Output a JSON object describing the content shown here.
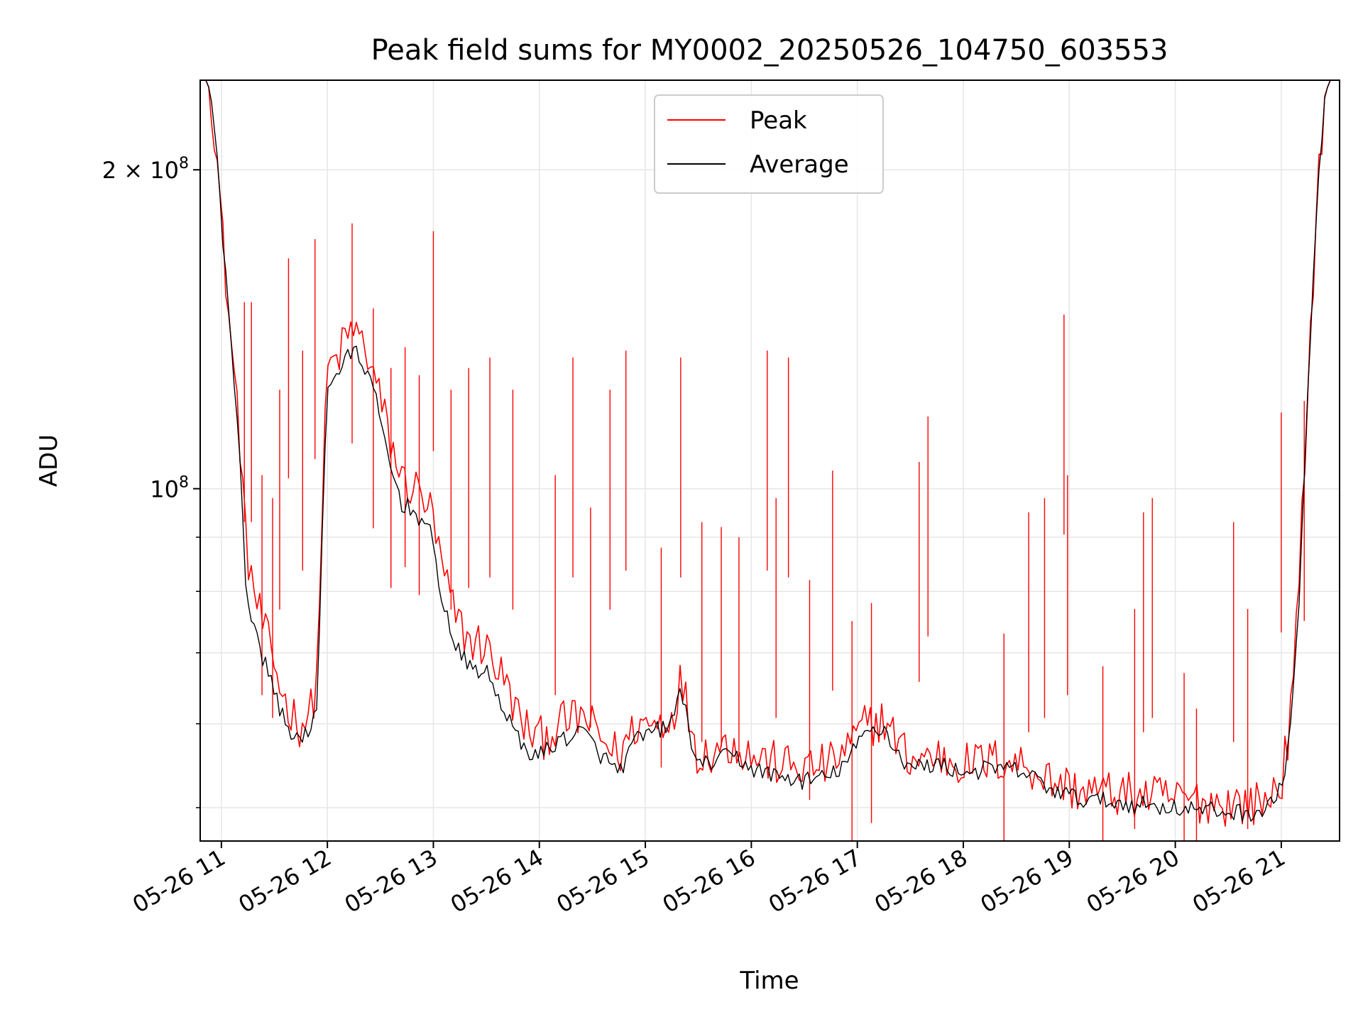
{
  "chart_data": {
    "type": "line",
    "title": "Peak field sums for MY0002_20250526_104750_603553",
    "xlabel": "Time",
    "ylabel": "ADU",
    "yscale": "log",
    "xlim": [
      "2025-05-26T10:48:00",
      "2025-05-26T21:33:00"
    ],
    "ylim": [
      46500000,
      243000000
    ],
    "grid": true,
    "legend_position": "top-center",
    "x_ticks": [
      "05-26 11",
      "05-26 12",
      "05-26 13",
      "05-26 14",
      "05-26 15",
      "05-26 16",
      "05-26 17",
      "05-26 18",
      "05-26 19",
      "05-26 20",
      "05-26 21"
    ],
    "y_ticks": [
      {
        "value": 100000000,
        "base": "10",
        "exp": "8",
        "prefix": ""
      },
      {
        "value": 200000000,
        "base": "10",
        "exp": "8",
        "prefix": "2 × "
      }
    ],
    "series": [
      {
        "name": "Peak",
        "color": "#ff0000",
        "base": [
          [
            "2025-05-26T10:48:00",
            243000000
          ],
          [
            "2025-05-26T10:52:00",
            243000000
          ],
          [
            "2025-05-26T10:55:00",
            230000000
          ],
          [
            "2025-05-26T10:58:00",
            200000000
          ],
          [
            "2025-05-26T11:01:00",
            170000000
          ],
          [
            "2025-05-26T11:05:00",
            140000000
          ],
          [
            "2025-05-26T11:10:00",
            115000000
          ],
          [
            "2025-05-26T11:14:00",
            88000000
          ],
          [
            "2025-05-26T11:20:00",
            78000000
          ],
          [
            "2025-05-26T11:28:00",
            70000000
          ],
          [
            "2025-05-26T11:36:00",
            63000000
          ],
          [
            "2025-05-26T11:44:00",
            60000000
          ],
          [
            "2025-05-26T11:50:00",
            61000000
          ],
          [
            "2025-05-26T11:54:00",
            66000000
          ],
          [
            "2025-05-26T11:57:00",
            95000000
          ],
          [
            "2025-05-26T12:00:00",
            130000000
          ],
          [
            "2025-05-26T12:05:00",
            132000000
          ],
          [
            "2025-05-26T12:10:00",
            138000000
          ],
          [
            "2025-05-26T12:15:00",
            142000000
          ],
          [
            "2025-05-26T12:22:00",
            135000000
          ],
          [
            "2025-05-26T12:28:00",
            125000000
          ],
          [
            "2025-05-26T12:35:00",
            112000000
          ],
          [
            "2025-05-26T12:42:00",
            102000000
          ],
          [
            "2025-05-26T12:50:00",
            100000000
          ],
          [
            "2025-05-26T12:58:00",
            96000000
          ],
          [
            "2025-05-26T13:05:00",
            84000000
          ],
          [
            "2025-05-26T13:12:00",
            76000000
          ],
          [
            "2025-05-26T13:20:00",
            72000000
          ],
          [
            "2025-05-26T13:30:00",
            71000000
          ],
          [
            "2025-05-26T13:40:00",
            66000000
          ],
          [
            "2025-05-26T13:50:00",
            60000000
          ],
          [
            "2025-05-26T14:00:00",
            58000000
          ],
          [
            "2025-05-26T14:12:00",
            60000000
          ],
          [
            "2025-05-26T14:25:00",
            61000000
          ],
          [
            "2025-05-26T14:35:00",
            58000000
          ],
          [
            "2025-05-26T14:45:00",
            56000000
          ],
          [
            "2025-05-26T14:55:00",
            60000000
          ],
          [
            "2025-05-26T15:05:00",
            60000000
          ],
          [
            "2025-05-26T15:15:00",
            61000000
          ],
          [
            "2025-05-26T15:20:00",
            66000000
          ],
          [
            "2025-05-26T15:25:00",
            61000000
          ],
          [
            "2025-05-26T15:30:00",
            56000000
          ],
          [
            "2025-05-26T15:40:00",
            57000000
          ],
          [
            "2025-05-26T15:50:00",
            57500000
          ],
          [
            "2025-05-26T16:00:00",
            56000000
          ],
          [
            "2025-05-26T16:15:00",
            55000000
          ],
          [
            "2025-05-26T16:30:00",
            54500000
          ],
          [
            "2025-05-26T16:45:00",
            55000000
          ],
          [
            "2025-05-26T16:55:00",
            57000000
          ],
          [
            "2025-05-26T17:05:00",
            60000000
          ],
          [
            "2025-05-26T17:15:00",
            60500000
          ],
          [
            "2025-05-26T17:22:00",
            58000000
          ],
          [
            "2025-05-26T17:30:00",
            55500000
          ],
          [
            "2025-05-26T17:45:00",
            56000000
          ],
          [
            "2025-05-26T18:00:00",
            55000000
          ],
          [
            "2025-05-26T18:20:00",
            55500000
          ],
          [
            "2025-05-26T18:35:00",
            55000000
          ],
          [
            "2025-05-26T18:50:00",
            53000000
          ],
          [
            "2025-05-26T19:05:00",
            52000000
          ],
          [
            "2025-05-26T19:30:00",
            51500000
          ],
          [
            "2025-05-26T20:00:00",
            51000000
          ],
          [
            "2025-05-26T20:30:00",
            50500000
          ],
          [
            "2025-05-26T20:50:00",
            50500000
          ],
          [
            "2025-05-26T21:00:00",
            53000000
          ],
          [
            "2025-05-26T21:05:00",
            60000000
          ],
          [
            "2025-05-26T21:10:00",
            80000000
          ],
          [
            "2025-05-26T21:15:00",
            125000000
          ],
          [
            "2025-05-26T21:20:00",
            185000000
          ],
          [
            "2025-05-26T21:24:00",
            230000000
          ],
          [
            "2025-05-26T21:27:00",
            243000000
          ],
          [
            "2025-05-26T21:33:00",
            243000000
          ]
        ],
        "spikes": [
          [
            "2025-05-26T11:13:00",
            150000000
          ],
          [
            "2025-05-26T11:17:00",
            150000000
          ],
          [
            "2025-05-26T11:23:00",
            103000000
          ],
          [
            "2025-05-26T11:29:00",
            98000000
          ],
          [
            "2025-05-26T11:33:00",
            124000000
          ],
          [
            "2025-05-26T11:38:00",
            165000000
          ],
          [
            "2025-05-26T11:46:00",
            135000000
          ],
          [
            "2025-05-26T11:53:00",
            172000000
          ],
          [
            "2025-05-26T12:14:00",
            178000000
          ],
          [
            "2025-05-26T12:26:00",
            148000000
          ],
          [
            "2025-05-26T12:36:00",
            130000000
          ],
          [
            "2025-05-26T12:44:00",
            136000000
          ],
          [
            "2025-05-26T12:52:00",
            128000000
          ],
          [
            "2025-05-26T13:00:00",
            175000000
          ],
          [
            "2025-05-26T13:10:00",
            124000000
          ],
          [
            "2025-05-26T13:20:00",
            130000000
          ],
          [
            "2025-05-26T13:32:00",
            133000000
          ],
          [
            "2025-05-26T13:45:00",
            124000000
          ],
          [
            "2025-05-26T14:09:00",
            103000000
          ],
          [
            "2025-05-26T14:19:00",
            133000000
          ],
          [
            "2025-05-26T14:29:00",
            96000000
          ],
          [
            "2025-05-26T14:40:00",
            124000000
          ],
          [
            "2025-05-26T14:49:00",
            135000000
          ],
          [
            "2025-05-26T15:09:00",
            88000000
          ],
          [
            "2025-05-26T15:20:00",
            133000000
          ],
          [
            "2025-05-26T15:32:00",
            93000000
          ],
          [
            "2025-05-26T15:43:00",
            92000000
          ],
          [
            "2025-05-26T15:53:00",
            90000000
          ],
          [
            "2025-05-26T16:09:00",
            135000000
          ],
          [
            "2025-05-26T16:14:00",
            98000000
          ],
          [
            "2025-05-26T16:21:00",
            133000000
          ],
          [
            "2025-05-26T16:33:00",
            82000000
          ],
          [
            "2025-05-26T16:46:00",
            104000000
          ],
          [
            "2025-05-26T16:57:00",
            75000000
          ],
          [
            "2025-05-26T17:08:00",
            78000000
          ],
          [
            "2025-05-26T17:35:00",
            106000000
          ],
          [
            "2025-05-26T17:40:00",
            117000000
          ],
          [
            "2025-05-26T18:23:00",
            73000000
          ],
          [
            "2025-05-26T18:37:00",
            95000000
          ],
          [
            "2025-05-26T18:46:00",
            98000000
          ],
          [
            "2025-05-26T18:57:00",
            146000000
          ],
          [
            "2025-05-26T18:59:00",
            103000000
          ],
          [
            "2025-05-26T19:19:00",
            68000000
          ],
          [
            "2025-05-26T19:37:00",
            77000000
          ],
          [
            "2025-05-26T19:42:00",
            95000000
          ],
          [
            "2025-05-26T19:47:00",
            98000000
          ],
          [
            "2025-05-26T20:05:00",
            67000000
          ],
          [
            "2025-05-26T20:12:00",
            62000000
          ],
          [
            "2025-05-26T20:33:00",
            93000000
          ],
          [
            "2025-05-26T20:41:00",
            77000000
          ],
          [
            "2025-05-26T21:00:00",
            118000000
          ],
          [
            "2025-05-26T21:13:00",
            121000000
          ]
        ]
      },
      {
        "name": "Average",
        "color": "#000000",
        "base": [
          [
            "2025-05-26T10:48:00",
            243000000
          ],
          [
            "2025-05-26T10:52:00",
            243000000
          ],
          [
            "2025-05-26T10:55:00",
            230000000
          ],
          [
            "2025-05-26T10:58:00",
            200000000
          ],
          [
            "2025-05-26T11:01:00",
            170000000
          ],
          [
            "2025-05-26T11:05:00",
            140000000
          ],
          [
            "2025-05-26T11:10:00",
            112000000
          ],
          [
            "2025-05-26T11:14:00",
            80000000
          ],
          [
            "2025-05-26T11:20:00",
            72000000
          ],
          [
            "2025-05-26T11:28:00",
            66000000
          ],
          [
            "2025-05-26T11:36:00",
            60000000
          ],
          [
            "2025-05-26T11:44:00",
            58000000
          ],
          [
            "2025-05-26T11:50:00",
            58500000
          ],
          [
            "2025-05-26T11:54:00",
            62000000
          ],
          [
            "2025-05-26T11:57:00",
            90000000
          ],
          [
            "2025-05-26T12:00:00",
            126000000
          ],
          [
            "2025-05-26T12:05:00",
            128000000
          ],
          [
            "2025-05-26T12:10:00",
            132000000
          ],
          [
            "2025-05-26T12:15:00",
            135000000
          ],
          [
            "2025-05-26T12:22:00",
            130000000
          ],
          [
            "2025-05-26T12:28:00",
            120000000
          ],
          [
            "2025-05-26T12:35:00",
            106000000
          ],
          [
            "2025-05-26T12:42:00",
            97000000
          ],
          [
            "2025-05-26T12:50:00",
            95000000
          ],
          [
            "2025-05-26T12:58:00",
            91000000
          ],
          [
            "2025-05-26T13:05:00",
            79000000
          ],
          [
            "2025-05-26T13:12:00",
            71000000
          ],
          [
            "2025-05-26T13:20:00",
            68000000
          ],
          [
            "2025-05-26T13:30:00",
            67000000
          ],
          [
            "2025-05-26T13:40:00",
            62000000
          ],
          [
            "2025-05-26T13:50:00",
            57000000
          ],
          [
            "2025-05-26T14:00:00",
            56000000
          ],
          [
            "2025-05-26T14:12:00",
            58000000
          ],
          [
            "2025-05-26T14:25:00",
            59000000
          ],
          [
            "2025-05-26T14:35:00",
            56000000
          ],
          [
            "2025-05-26T14:45:00",
            54000000
          ],
          [
            "2025-05-26T14:55:00",
            58000000
          ],
          [
            "2025-05-26T15:05:00",
            59000000
          ],
          [
            "2025-05-26T15:15:00",
            60000000
          ],
          [
            "2025-05-26T15:20:00",
            65000000
          ],
          [
            "2025-05-26T15:25:00",
            59000000
          ],
          [
            "2025-05-26T15:30:00",
            54500000
          ],
          [
            "2025-05-26T15:40:00",
            55500000
          ],
          [
            "2025-05-26T15:50:00",
            56000000
          ],
          [
            "2025-05-26T16:00:00",
            54500000
          ],
          [
            "2025-05-26T16:15:00",
            53500000
          ],
          [
            "2025-05-26T16:30:00",
            53000000
          ],
          [
            "2025-05-26T16:45:00",
            53500000
          ],
          [
            "2025-05-26T16:55:00",
            55500000
          ],
          [
            "2025-05-26T17:05:00",
            59000000
          ],
          [
            "2025-05-26T17:15:00",
            59500000
          ],
          [
            "2025-05-26T17:22:00",
            56500000
          ],
          [
            "2025-05-26T17:30:00",
            54500000
          ],
          [
            "2025-05-26T17:45:00",
            55000000
          ],
          [
            "2025-05-26T18:00:00",
            54000000
          ],
          [
            "2025-05-26T18:20:00",
            54500000
          ],
          [
            "2025-05-26T18:35:00",
            54000000
          ],
          [
            "2025-05-26T18:50:00",
            52000000
          ],
          [
            "2025-05-26T19:05:00",
            51000000
          ],
          [
            "2025-05-26T19:30:00",
            50500000
          ],
          [
            "2025-05-26T20:00:00",
            50000000
          ],
          [
            "2025-05-26T20:30:00",
            49500000
          ],
          [
            "2025-05-26T20:50:00",
            49500000
          ],
          [
            "2025-05-26T21:00:00",
            52000000
          ],
          [
            "2025-05-26T21:05:00",
            59000000
          ],
          [
            "2025-05-26T21:10:00",
            78000000
          ],
          [
            "2025-05-26T21:15:00",
            122000000
          ],
          [
            "2025-05-26T21:20:00",
            183000000
          ],
          [
            "2025-05-26T21:24:00",
            230000000
          ],
          [
            "2025-05-26T21:27:00",
            243000000
          ],
          [
            "2025-05-26T21:33:00",
            243000000
          ]
        ]
      }
    ]
  }
}
